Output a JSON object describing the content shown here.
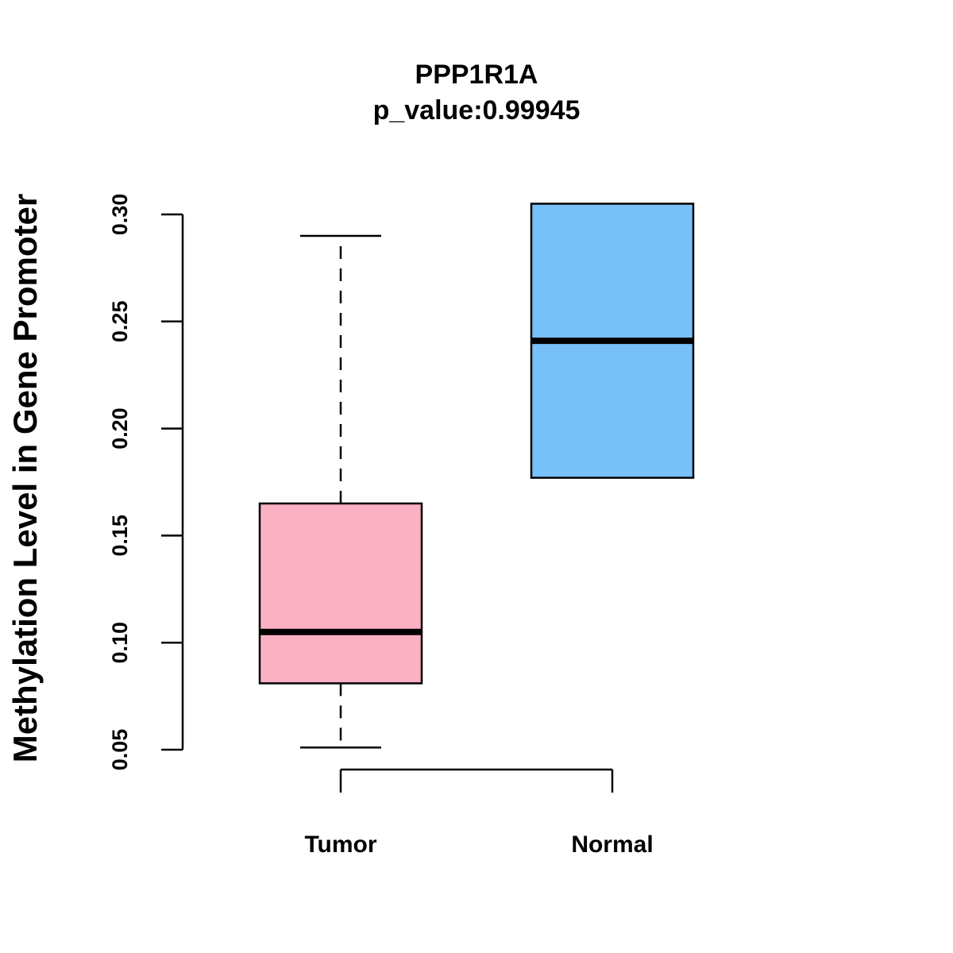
{
  "chart_data": {
    "type": "boxplot",
    "title": "PPP1R1A",
    "subtitle": "p_value:0.99945",
    "xlabel": "",
    "ylabel": "Methylation Level in Gene Promoter",
    "ylim": [
      0.05,
      0.3
    ],
    "yticks": [
      0.05,
      0.1,
      0.15,
      0.2,
      0.25,
      0.3
    ],
    "ytick_labels": [
      "0.05",
      "0.10",
      "0.15",
      "0.20",
      "0.25",
      "0.30"
    ],
    "grid": false,
    "categories": [
      "Tumor",
      "Normal"
    ],
    "boxes": [
      {
        "name": "Tumor",
        "whisker_low": 0.051,
        "q1": 0.081,
        "median": 0.105,
        "q3": 0.165,
        "whisker_high": 0.29,
        "color": "#FBB0C3"
      },
      {
        "name": "Normal",
        "whisker_low": 0.177,
        "q1": 0.177,
        "median": 0.241,
        "q3": 0.305,
        "whisker_high": 0.305,
        "color": "#78C0F8"
      }
    ]
  }
}
